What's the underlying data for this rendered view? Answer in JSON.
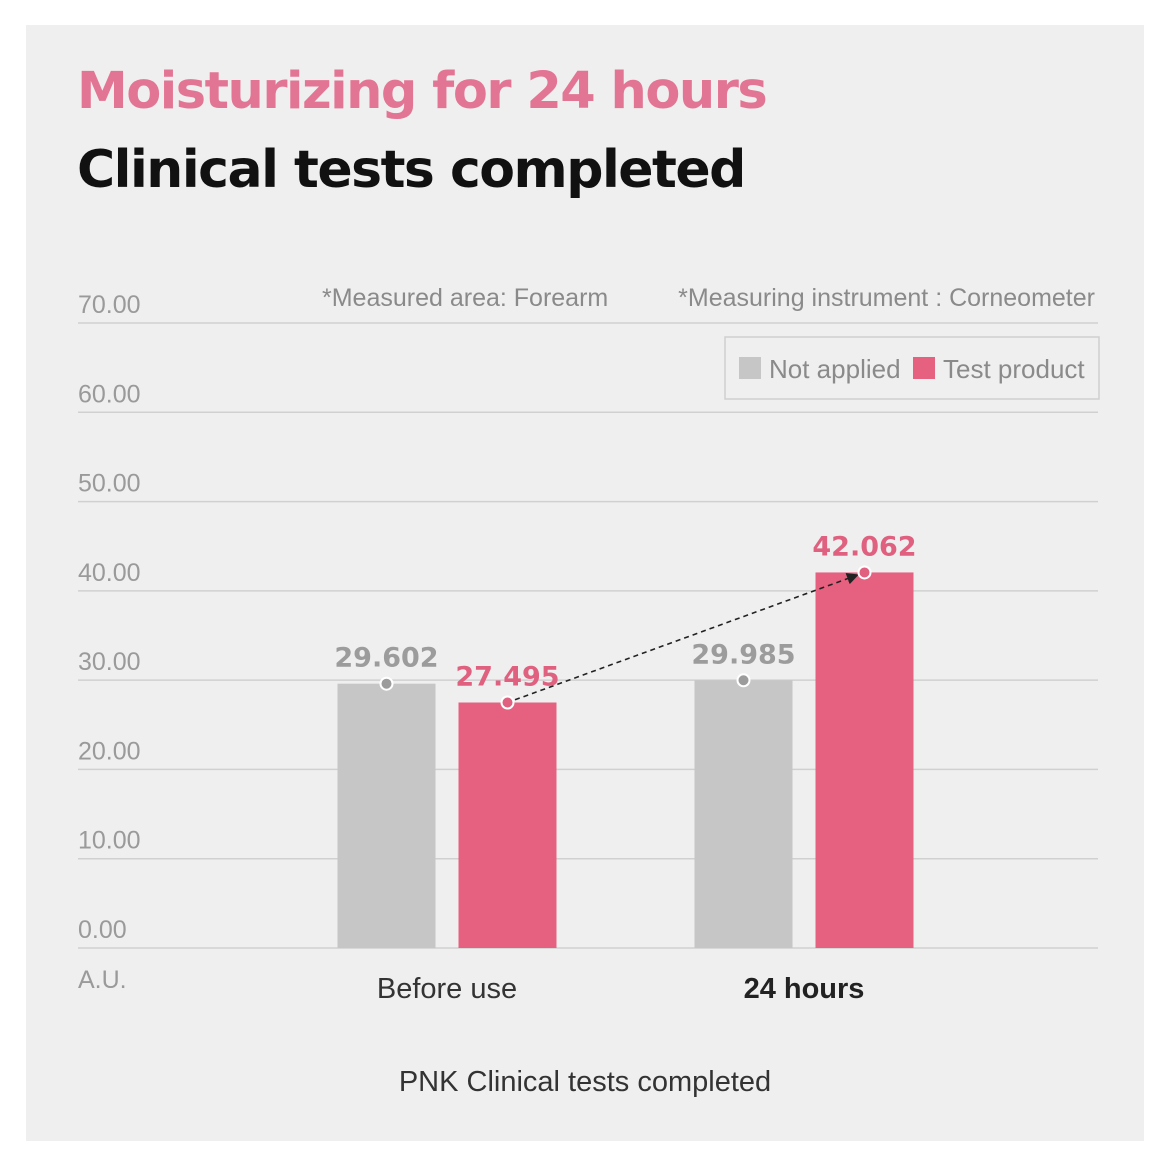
{
  "title": "Moisturizing for 24 hours",
  "subtitle": "Clinical tests completed",
  "notes": [
    "*Measured area: Forearm",
    "*Measuring instrument : Corneometer"
  ],
  "footer": "PNK Clinical tests completed",
  "colors": {
    "not_applied": "#c6c6c6",
    "test_product": "#e66180",
    "title_accent": "#e37594",
    "background": "#efefef"
  },
  "chart_data": {
    "type": "bar",
    "categories": [
      "Before use",
      "24 hours"
    ],
    "series": [
      {
        "name": "Not applied",
        "values": [
          29.602,
          29.985
        ],
        "labels": [
          "29.602",
          "29.985"
        ],
        "color": "#c6c6c6"
      },
      {
        "name": "Test product",
        "values": [
          27.495,
          42.062
        ],
        "labels": [
          "27.495",
          "42.062"
        ],
        "color": "#e66180"
      }
    ],
    "ylabel": "A.U.",
    "ylim": [
      0,
      70
    ],
    "yticks": [
      "0.00",
      "10.00",
      "20.00",
      "30.00",
      "40.00",
      "50.00",
      "60.00",
      "70.00"
    ],
    "grid": true,
    "legend": "top-right",
    "annotation": "dashed arrow from Test product Before use to Test product 24 hours"
  }
}
